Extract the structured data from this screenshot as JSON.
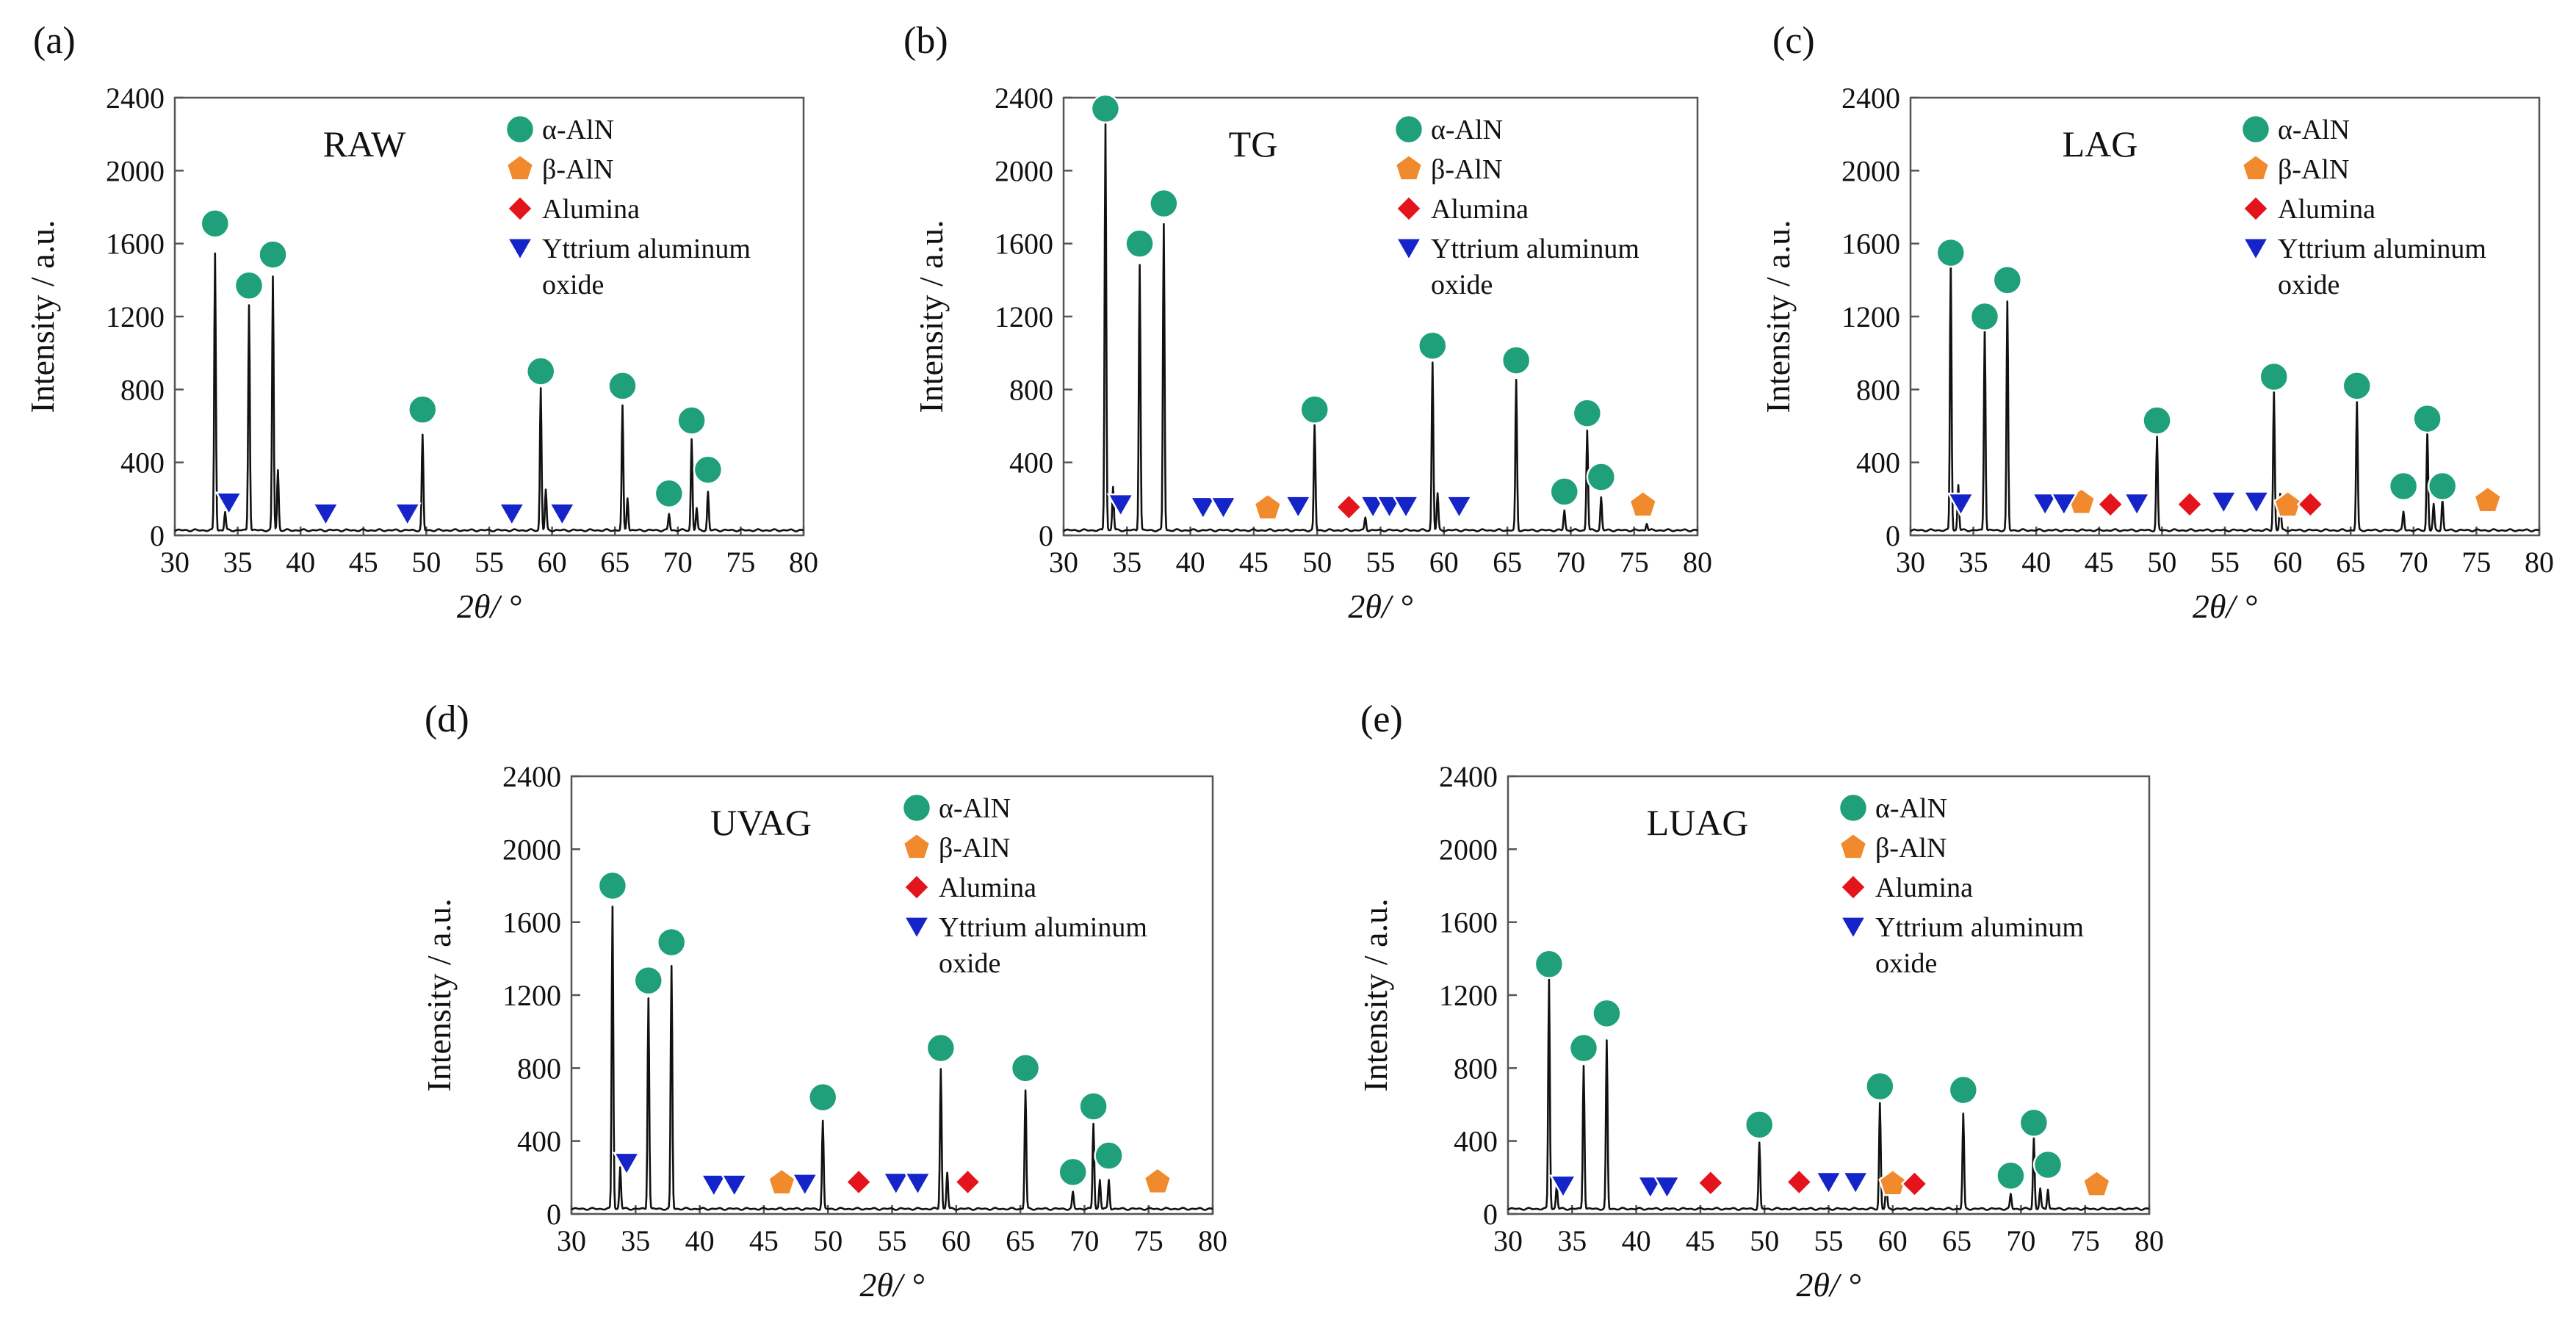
{
  "legend": {
    "items": [
      {
        "key": "alpha",
        "label": "α-AlN",
        "shape": "circle",
        "color": "#1fa07a"
      },
      {
        "key": "beta",
        "label": "β-AlN",
        "shape": "pentagon",
        "color": "#f08a2c"
      },
      {
        "key": "alumina",
        "label": "Alumina",
        "shape": "diamond",
        "color": "#e3141b"
      },
      {
        "key": "yao",
        "label": "Yttrium aluminum",
        "label2": "oxide",
        "shape": "triangle-down",
        "color": "#1424c8"
      }
    ]
  },
  "chart_data": [
    {
      "panel": "(a)",
      "sample": "RAW",
      "type": "line",
      "xlabel": "2θ/ °",
      "ylabel": "Intensity / a.u.",
      "xlim": [
        30,
        80
      ],
      "ylim": [
        0,
        2400
      ],
      "xticks": [
        30,
        35,
        40,
        45,
        50,
        55,
        60,
        65,
        70,
        75,
        80
      ],
      "yticks": [
        0,
        400,
        800,
        1200,
        1600,
        2000,
        2400
      ],
      "peaks": [
        [
          33.2,
          1520
        ],
        [
          34.0,
          100
        ],
        [
          35.9,
          1240
        ],
        [
          37.8,
          1390
        ],
        [
          38.2,
          330
        ],
        [
          49.7,
          520
        ],
        [
          59.1,
          780
        ],
        [
          59.5,
          220
        ],
        [
          65.6,
          680
        ],
        [
          66.0,
          180
        ],
        [
          69.3,
          90
        ],
        [
          71.1,
          500
        ],
        [
          71.5,
          120
        ],
        [
          72.4,
          210
        ]
      ],
      "markers": {
        "alpha": [
          [
            33.2,
            1710
          ],
          [
            35.9,
            1370
          ],
          [
            37.8,
            1540
          ],
          [
            49.7,
            690
          ],
          [
            59.1,
            900
          ],
          [
            65.6,
            820
          ],
          [
            69.3,
            230
          ],
          [
            71.1,
            630
          ],
          [
            72.4,
            360
          ]
        ],
        "beta": [],
        "alumina": [],
        "yao": [
          [
            34.3,
            180
          ],
          [
            42.0,
            120
          ],
          [
            48.5,
            120
          ],
          [
            56.8,
            120
          ],
          [
            60.8,
            120
          ]
        ]
      }
    },
    {
      "panel": "(b)",
      "sample": "TG",
      "type": "line",
      "xlabel": "2θ/ °",
      "ylabel": "Intensity / a.u.",
      "xlim": [
        30,
        80
      ],
      "ylim": [
        0,
        2400
      ],
      "xticks": [
        30,
        35,
        40,
        45,
        50,
        55,
        60,
        65,
        70,
        75,
        80
      ],
      "yticks": [
        0,
        400,
        800,
        1200,
        1600,
        2000,
        2400
      ],
      "peaks": [
        [
          33.3,
          2230
        ],
        [
          33.9,
          240
        ],
        [
          36.0,
          1460
        ],
        [
          37.9,
          1680
        ],
        [
          49.8,
          580
        ],
        [
          53.8,
          70
        ],
        [
          59.1,
          920
        ],
        [
          59.5,
          200
        ],
        [
          65.7,
          820
        ],
        [
          69.5,
          110
        ],
        [
          71.3,
          550
        ],
        [
          72.4,
          180
        ],
        [
          76.0,
          40
        ]
      ],
      "markers": {
        "alpha": [
          [
            33.3,
            2340
          ],
          [
            36.0,
            1600
          ],
          [
            37.9,
            1820
          ],
          [
            49.8,
            690
          ],
          [
            59.1,
            1040
          ],
          [
            65.7,
            960
          ],
          [
            69.5,
            240
          ],
          [
            71.3,
            670
          ],
          [
            72.4,
            320
          ]
        ],
        "beta": [
          [
            46.1,
            150
          ],
          [
            75.7,
            165
          ]
        ],
        "alumina": [
          [
            52.5,
            155
          ]
        ],
        "yao": [
          [
            34.5,
            170
          ],
          [
            41.0,
            155
          ],
          [
            42.6,
            155
          ],
          [
            48.5,
            160
          ],
          [
            54.4,
            160
          ],
          [
            55.7,
            160
          ],
          [
            57.0,
            160
          ],
          [
            61.2,
            160
          ]
        ]
      }
    },
    {
      "panel": "(c)",
      "sample": "LAG",
      "type": "line",
      "xlabel": "2θ/ °",
      "ylabel": "Intensity / a.u.",
      "xlim": [
        30,
        80
      ],
      "ylim": [
        0,
        2400
      ],
      "xticks": [
        30,
        35,
        40,
        45,
        50,
        55,
        60,
        65,
        70,
        75,
        80
      ],
      "yticks": [
        0,
        400,
        800,
        1200,
        1600,
        2000,
        2400
      ],
      "peaks": [
        [
          33.2,
          1480
        ],
        [
          33.8,
          250
        ],
        [
          35.9,
          1120
        ],
        [
          37.7,
          1250
        ],
        [
          49.6,
          510
        ],
        [
          58.9,
          760
        ],
        [
          59.4,
          200
        ],
        [
          65.5,
          700
        ],
        [
          69.2,
          100
        ],
        [
          71.1,
          540
        ],
        [
          71.6,
          140
        ],
        [
          72.3,
          170
        ]
      ],
      "markers": {
        "alpha": [
          [
            33.2,
            1550
          ],
          [
            35.9,
            1200
          ],
          [
            37.7,
            1400
          ],
          [
            49.6,
            630
          ],
          [
            58.9,
            870
          ],
          [
            65.5,
            820
          ],
          [
            69.2,
            270
          ],
          [
            71.1,
            640
          ],
          [
            72.3,
            270
          ]
        ],
        "beta": [
          [
            43.6,
            180
          ],
          [
            60.0,
            165
          ],
          [
            75.9,
            190
          ]
        ],
        "alumina": [
          [
            45.9,
            170
          ],
          [
            52.2,
            170
          ],
          [
            61.8,
            170
          ]
        ],
        "yao": [
          [
            34.0,
            175
          ],
          [
            40.7,
            175
          ],
          [
            42.2,
            175
          ],
          [
            48.0,
            175
          ],
          [
            54.9,
            185
          ],
          [
            57.5,
            185
          ]
        ]
      }
    },
    {
      "panel": "(d)",
      "sample": "UVAG",
      "type": "line",
      "xlabel": "2θ/ °",
      "ylabel": "Intensity / a.u.",
      "xlim": [
        30,
        80
      ],
      "ylim": [
        0,
        2400
      ],
      "xticks": [
        30,
        35,
        40,
        45,
        50,
        55,
        60,
        65,
        70,
        75,
        80
      ],
      "yticks": [
        0,
        400,
        800,
        1200,
        1600,
        2000,
        2400
      ],
      "peaks": [
        [
          33.2,
          1660
        ],
        [
          33.8,
          230
        ],
        [
          36.0,
          1160
        ],
        [
          37.8,
          1330
        ],
        [
          49.6,
          480
        ],
        [
          58.8,
          770
        ],
        [
          59.3,
          200
        ],
        [
          65.4,
          650
        ],
        [
          69.1,
          90
        ],
        [
          70.7,
          470
        ],
        [
          71.2,
          160
        ],
        [
          71.9,
          160
        ]
      ],
      "markers": {
        "alpha": [
          [
            33.2,
            1800
          ],
          [
            36.0,
            1280
          ],
          [
            37.8,
            1490
          ],
          [
            49.6,
            640
          ],
          [
            58.8,
            910
          ],
          [
            65.4,
            800
          ],
          [
            69.1,
            230
          ],
          [
            70.7,
            590
          ],
          [
            71.9,
            320
          ]
        ],
        "beta": [
          [
            46.4,
            170
          ],
          [
            75.7,
            175
          ]
        ],
        "alumina": [
          [
            52.4,
            175
          ],
          [
            60.9,
            175
          ]
        ],
        "yao": [
          [
            34.3,
            280
          ],
          [
            41.1,
            160
          ],
          [
            42.7,
            160
          ],
          [
            48.2,
            165
          ],
          [
            55.3,
            170
          ],
          [
            57.0,
            170
          ]
        ]
      }
    },
    {
      "panel": "(e)",
      "sample": "LUAG",
      "type": "line",
      "xlabel": "2θ/ °",
      "ylabel": "Intensity / a.u.",
      "xlim": [
        30,
        80
      ],
      "ylim": [
        0,
        2400
      ],
      "xticks": [
        30,
        35,
        40,
        45,
        50,
        55,
        60,
        65,
        70,
        75,
        80
      ],
      "yticks": [
        0,
        400,
        800,
        1200,
        1600,
        2000,
        2400
      ],
      "peaks": [
        [
          33.2,
          1260
        ],
        [
          33.8,
          130
        ],
        [
          35.9,
          790
        ],
        [
          37.7,
          920
        ],
        [
          49.6,
          360
        ],
        [
          59.0,
          580
        ],
        [
          59.5,
          150
        ],
        [
          65.5,
          520
        ],
        [
          69.2,
          80
        ],
        [
          71.0,
          390
        ],
        [
          71.5,
          110
        ],
        [
          72.1,
          110
        ]
      ],
      "markers": {
        "alpha": [
          [
            33.2,
            1370
          ],
          [
            35.9,
            910
          ],
          [
            37.7,
            1100
          ],
          [
            49.6,
            490
          ],
          [
            59.0,
            700
          ],
          [
            65.5,
            680
          ],
          [
            69.2,
            210
          ],
          [
            71.0,
            500
          ],
          [
            72.1,
            270
          ]
        ],
        "beta": [
          [
            60.0,
            165
          ],
          [
            75.9,
            160
          ]
        ],
        "alumina": [
          [
            45.8,
            170
          ],
          [
            52.7,
            175
          ],
          [
            61.7,
            165
          ]
        ],
        "yao": [
          [
            34.3,
            155
          ],
          [
            41.1,
            150
          ],
          [
            42.4,
            150
          ],
          [
            55.0,
            175
          ],
          [
            57.1,
            175
          ]
        ]
      }
    }
  ]
}
